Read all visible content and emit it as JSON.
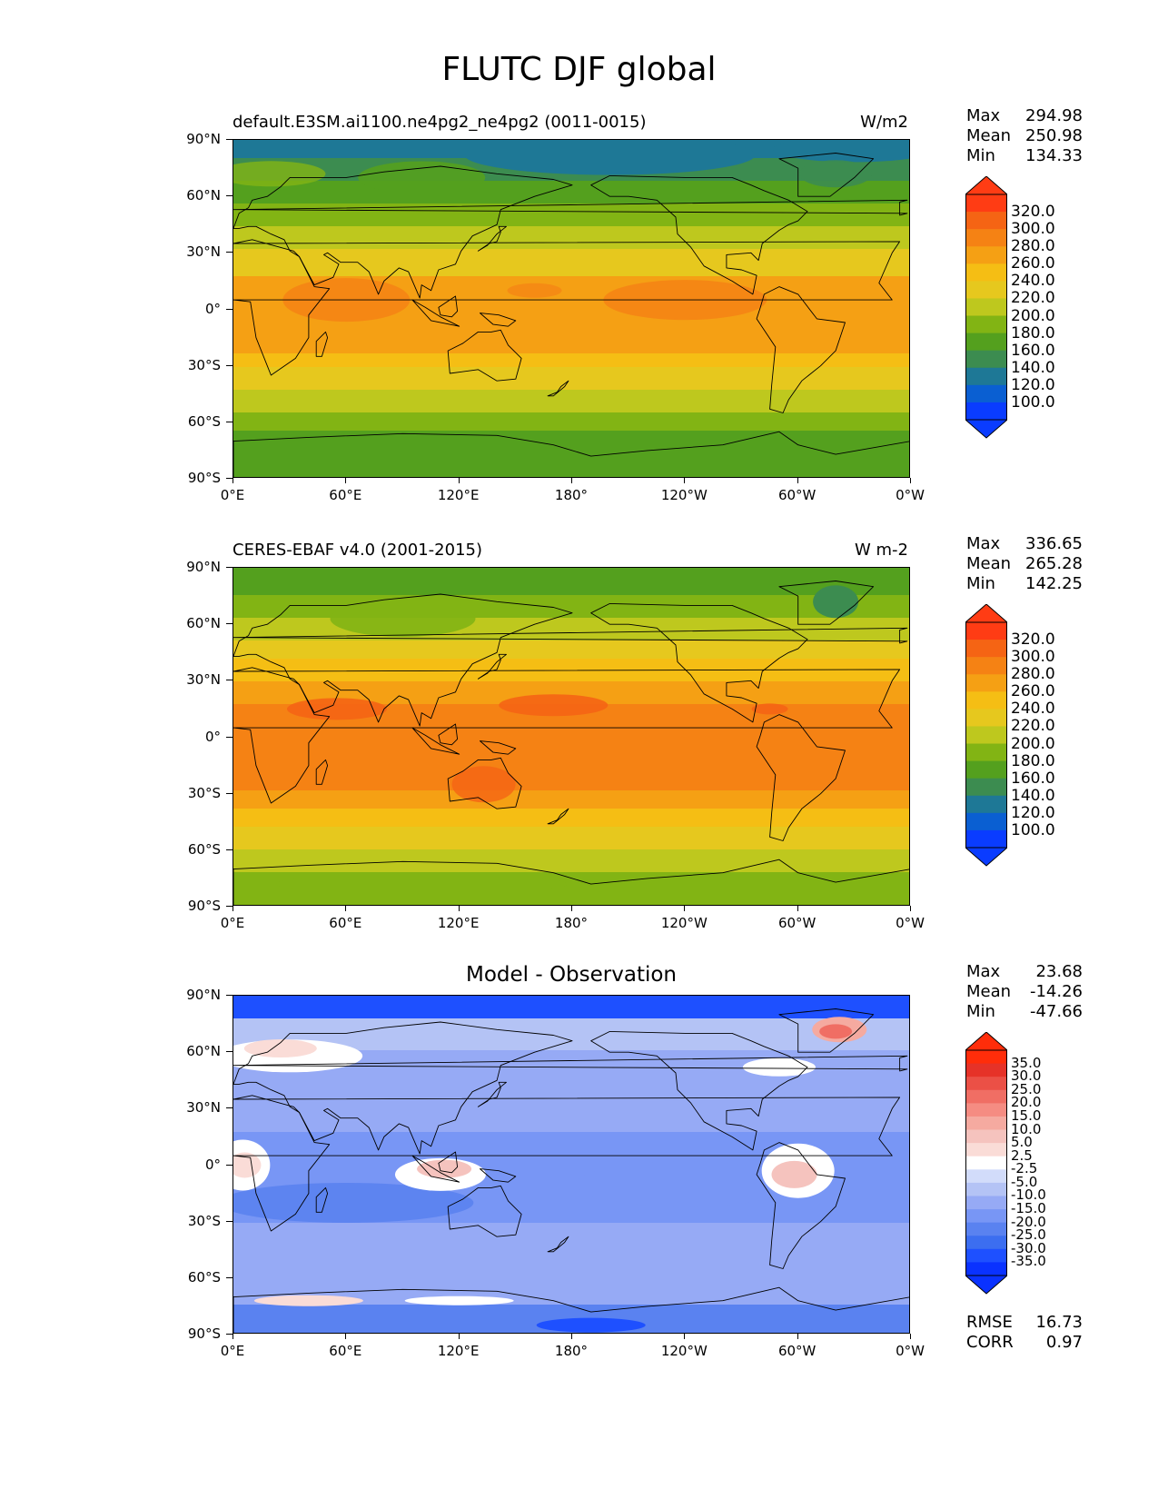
{
  "title": "FLUTC DJF global",
  "colors": {
    "ocean_line": "#000000",
    "levels_abs": [
      "#0a3cff",
      "#0a5fd2",
      "#1e7896",
      "#3c8c50",
      "#54a01e",
      "#82b414",
      "#bec81e",
      "#e6c81e",
      "#f5be14",
      "#f5a014",
      "#f58214",
      "#f56414",
      "#ff3c14"
    ],
    "levels_diff": [
      "#0a32ff",
      "#1e50ff",
      "#3c6ef0",
      "#5a82f0",
      "#7896f5",
      "#96aaf5",
      "#b4c3f5",
      "#d2dcfa",
      "#ffffff",
      "#fadcd7",
      "#f5c3be",
      "#f5aaa0",
      "#f58c82",
      "#f06e64",
      "#eb5046",
      "#e63228",
      "#ff2d0a"
    ]
  },
  "axes": {
    "ylabels": [
      "90°N",
      "60°N",
      "30°N",
      "0°",
      "30°S",
      "60°S",
      "90°S"
    ],
    "xlabels": [
      "0°E",
      "60°E",
      "120°E",
      "180°",
      "120°W",
      "60°W",
      "0°W"
    ]
  },
  "panels": [
    {
      "id": "model",
      "title_left": "default.E3SM.ai1100.ne4pg2_ne4pg2 (0011-0015)",
      "title_right": "W/m2",
      "stats": [
        {
          "k": "Max",
          "v": "294.98"
        },
        {
          "k": "Mean",
          "v": "250.98"
        },
        {
          "k": "Min",
          "v": "134.33"
        }
      ],
      "colorbar_labels": [
        "320.0",
        "300.0",
        "280.0",
        "260.0",
        "240.0",
        "220.0",
        "200.0",
        "180.0",
        "160.0",
        "140.0",
        "120.0",
        "100.0"
      ]
    },
    {
      "id": "obs",
      "title_left": "CERES-EBAF v4.0 (2001-2015)",
      "title_right": "W m-2",
      "stats": [
        {
          "k": "Max",
          "v": "336.65"
        },
        {
          "k": "Mean",
          "v": "265.28"
        },
        {
          "k": "Min",
          "v": "142.25"
        }
      ],
      "colorbar_labels": [
        "320.0",
        "300.0",
        "280.0",
        "260.0",
        "240.0",
        "220.0",
        "200.0",
        "180.0",
        "160.0",
        "140.0",
        "120.0",
        "100.0"
      ]
    },
    {
      "id": "diff",
      "title_center": "Model - Observation",
      "stats": [
        {
          "k": "Max",
          "v": "23.68"
        },
        {
          "k": "Mean",
          "v": "-14.26"
        },
        {
          "k": "Min",
          "v": "-47.66"
        }
      ],
      "colorbar_labels": [
        "35.0",
        "30.0",
        "25.0",
        "20.0",
        "15.0",
        "10.0",
        "5.0",
        "2.5",
        "-2.5",
        "-5.0",
        "-10.0",
        "-15.0",
        "-20.0",
        "-25.0",
        "-30.0",
        "-35.0"
      ],
      "rmse": {
        "k": "RMSE",
        "v": "16.73"
      },
      "corr": {
        "k": "CORR",
        "v": "0.97"
      }
    }
  ]
}
